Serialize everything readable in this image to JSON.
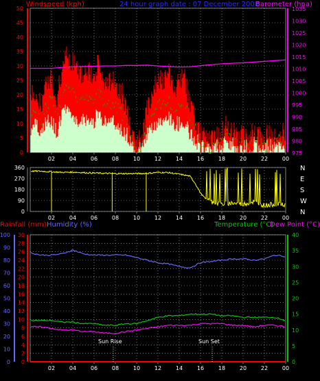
{
  "colors": {
    "background": "#000000",
    "axis": "#808080",
    "grid": "#c0c0c0",
    "wind_gust": "#ff0000",
    "wind_avg": "#00cc00",
    "wind_light": "#ccffcc",
    "barometer": "#ff00ff",
    "direction": "#ffff00",
    "rainfall": "#ff0000",
    "humidity": "#6666ff",
    "temperature": "#00cc00",
    "dewpoint": "#ff00ff",
    "title_blue": "#2a2aff"
  },
  "header": {
    "windspeed_label": "Windspeed (kph)",
    "title": "24 hour graph date : 07 December 2008",
    "barometer_label": "Barometer (hpa)"
  },
  "bottom_header": {
    "rainfall_label": "Rainfall (mm)",
    "humidity_label": "Humidity (%)",
    "temperature_label": "Temperature (°C)",
    "dewpoint_label": "Dew Point (°C)"
  },
  "annotations": {
    "sunrise": "Sun Rise",
    "sunset": "Sun Set"
  },
  "chart_data": [
    {
      "type": "line",
      "x_ticks": [
        "02",
        "04",
        "06",
        "08",
        "10",
        "12",
        "14",
        "16",
        "18",
        "20",
        "22",
        "00"
      ],
      "y_left_ticks": [
        "0",
        "5",
        "10",
        "15",
        "20",
        "25",
        "30",
        "35",
        "40",
        "45",
        "50"
      ],
      "y_right_ticks": [
        "975",
        "980",
        "985",
        "990",
        "995",
        "1000",
        "1005",
        "1010",
        "1015",
        "1020",
        "1025",
        "1030",
        "1035"
      ],
      "y_left_range": [
        0,
        50
      ],
      "y_right_range": [
        975,
        1035
      ],
      "x_range_hours": [
        0,
        24
      ],
      "series": [
        {
          "name": "Windspeed (kph)",
          "axis": "left",
          "x": [
            0,
            0.5,
            1,
            1.5,
            2,
            2.5,
            3,
            3.5,
            4,
            4.5,
            5,
            5.5,
            6,
            6.5,
            7,
            7.5,
            8,
            8.5,
            9,
            9.5,
            10,
            10.5,
            11,
            11.5,
            12,
            12.5,
            13,
            13.5,
            14,
            14.5,
            15,
            15.5,
            16,
            16.5,
            17,
            17.5,
            18,
            18.5,
            19,
            19.5,
            20,
            20.5,
            21,
            21.5,
            22,
            22.5,
            23,
            23.5,
            24
          ],
          "values": [
            18,
            20,
            15,
            22,
            25,
            17,
            28,
            32,
            30,
            26,
            24,
            27,
            25,
            30,
            23,
            24,
            22,
            20,
            15,
            4,
            3,
            2,
            14,
            20,
            24,
            23,
            26,
            21,
            22,
            25,
            14,
            10,
            5,
            3,
            2,
            4,
            5,
            8,
            6,
            3,
            5,
            4,
            6,
            4,
            3,
            5,
            4,
            6,
            3
          ]
        },
        {
          "name": "Barometer (hpa)",
          "axis": "right",
          "x": [
            0,
            1,
            2,
            3,
            4,
            5,
            6,
            7,
            8,
            9,
            10,
            11,
            12,
            13,
            14,
            15,
            16,
            17,
            18,
            19,
            20,
            21,
            22,
            23,
            24
          ],
          "values": [
            1010,
            1010,
            1010,
            1010.4,
            1010.6,
            1010.7,
            1010.9,
            1011,
            1011,
            1011.2,
            1011.2,
            1011.3,
            1011,
            1010.7,
            1010.5,
            1010.6,
            1011.1,
            1011.5,
            1011.9,
            1012.1,
            1012.3,
            1012.6,
            1012.9,
            1013.2,
            1013.5
          ]
        }
      ]
    },
    {
      "type": "line",
      "x_ticks": [
        "02",
        "04",
        "06",
        "08",
        "10",
        "12",
        "14",
        "16",
        "18",
        "20",
        "22",
        "00"
      ],
      "y_left_ticks": [
        "0",
        "90",
        "180",
        "270",
        "360"
      ],
      "y_right_ticks": [
        "N",
        "W",
        "S",
        "E",
        "N"
      ],
      "y_range": [
        0,
        360
      ],
      "series": [
        {
          "name": "Wind direction",
          "x": [
            0,
            1,
            2,
            3,
            4,
            5,
            6,
            7,
            8,
            9,
            10,
            11,
            12,
            13,
            14,
            15,
            15.5,
            16,
            16.5,
            17,
            18,
            19,
            20,
            21,
            22,
            23,
            24
          ],
          "values": [
            330,
            330,
            325,
            320,
            322,
            318,
            315,
            312,
            310,
            310,
            310,
            312,
            320,
            318,
            305,
            290,
            230,
            150,
            100,
            60,
            40,
            50,
            40,
            60,
            30,
            40,
            30
          ]
        }
      ]
    },
    {
      "type": "line",
      "x_ticks": [
        "02",
        "04",
        "06",
        "08",
        "10",
        "12",
        "14",
        "16",
        "18",
        "20",
        "22",
        "00"
      ],
      "y_left_ticks_rain": [
        "0",
        "2",
        "4",
        "6",
        "8",
        "10",
        "12",
        "14",
        "16",
        "18",
        "20",
        "22",
        "24",
        "26",
        "28",
        "30"
      ],
      "y_left_ticks_hum": [
        "0",
        "10",
        "20",
        "30",
        "40",
        "50",
        "60",
        "70",
        "80",
        "90",
        "100"
      ],
      "y_right_ticks": [
        "0",
        "5",
        "10",
        "15",
        "20",
        "25",
        "30",
        "35",
        "40"
      ],
      "rain_range": [
        0,
        30
      ],
      "humidity_range": [
        0,
        100
      ],
      "temp_range": [
        0,
        40
      ],
      "series": [
        {
          "name": "Humidity (%)",
          "x": [
            0,
            1,
            2,
            3,
            4,
            5,
            6,
            7,
            8,
            9,
            10,
            11,
            12,
            13,
            14,
            15,
            16,
            17,
            18,
            19,
            20,
            21,
            22,
            23,
            24
          ],
          "values": [
            86,
            84,
            84,
            85,
            88,
            85,
            84,
            84,
            84,
            84,
            82,
            80,
            78,
            77,
            75,
            74,
            78,
            79,
            80,
            81,
            81,
            80,
            81,
            84,
            83
          ]
        },
        {
          "name": "Temperature (°C)",
          "x": [
            0,
            1,
            2,
            3,
            4,
            5,
            6,
            7,
            8,
            9,
            10,
            11,
            12,
            13,
            14,
            15,
            16,
            17,
            18,
            19,
            20,
            21,
            22,
            23,
            24
          ],
          "values": [
            13,
            13,
            13,
            12.5,
            12.5,
            12,
            12,
            11.5,
            11.5,
            12,
            12,
            13,
            14,
            14.5,
            14.5,
            15,
            15,
            15,
            14.5,
            14.5,
            14,
            14,
            14,
            14,
            13
          ]
        },
        {
          "name": "Dew Point (°C)",
          "x": [
            0,
            1,
            2,
            3,
            4,
            5,
            6,
            7,
            8,
            9,
            10,
            11,
            12,
            13,
            14,
            15,
            16,
            17,
            18,
            19,
            20,
            21,
            22,
            23,
            24
          ],
          "values": [
            11,
            11,
            10.5,
            10,
            10,
            9.5,
            9.5,
            9,
            9,
            9.5,
            10,
            10.5,
            11,
            11.5,
            11.5,
            11.5,
            12,
            12,
            12,
            11.5,
            11.5,
            11,
            11.5,
            11.5,
            11
          ]
        },
        {
          "name": "Rainfall (mm)",
          "x": [
            0,
            24
          ],
          "values": [
            0,
            0
          ]
        }
      ]
    }
  ]
}
